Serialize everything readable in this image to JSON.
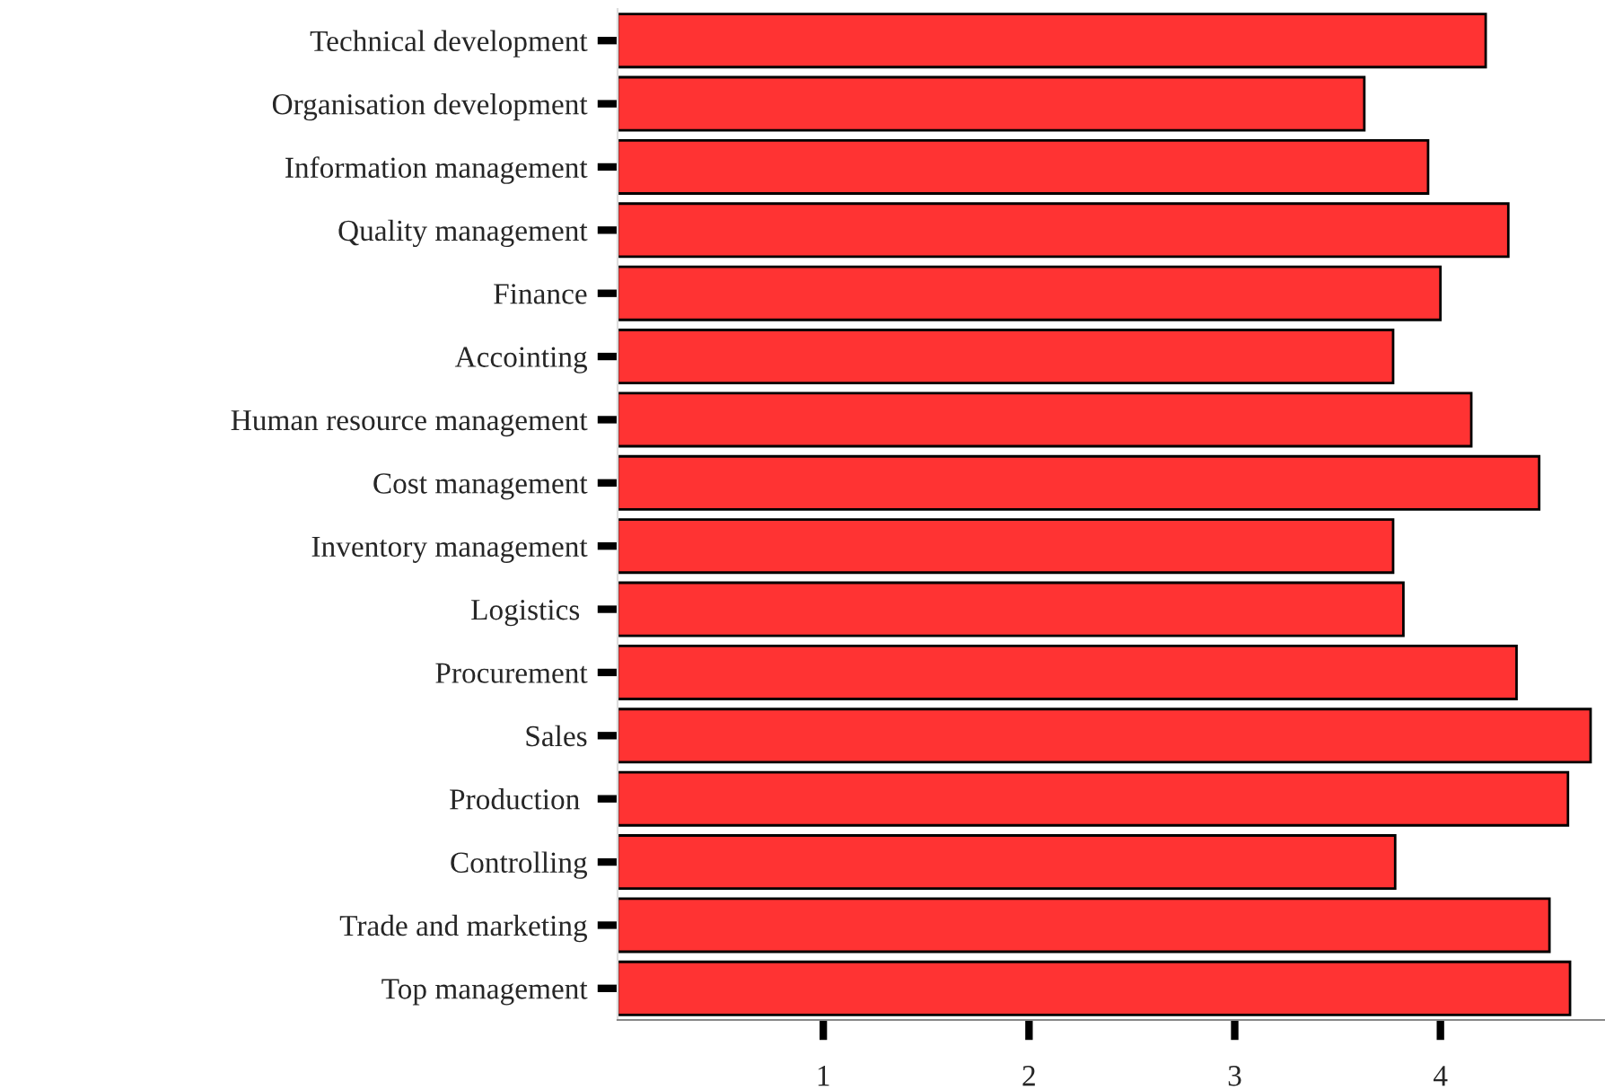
{
  "chart_data": {
    "type": "bar",
    "orientation": "horizontal",
    "categories": [
      "Technical development",
      "Organisation development",
      "Information management",
      "Quality management",
      "Finance",
      "Accointing",
      "Human resource management",
      "Cost management",
      "Inventory management",
      "Logistics ",
      "Procurement",
      "Sales",
      "Production ",
      "Controlling",
      "Trade and marketing",
      "Top management"
    ],
    "values": [
      4.22,
      3.63,
      3.94,
      4.33,
      4.0,
      3.77,
      4.15,
      4.48,
      3.77,
      3.82,
      4.37,
      4.73,
      4.62,
      3.78,
      4.53,
      4.63
    ],
    "color": "#ff3333",
    "xlim": [
      0,
      4.8
    ],
    "xticks": [
      1,
      2,
      3,
      4
    ],
    "grid": false,
    "legend": false
  }
}
